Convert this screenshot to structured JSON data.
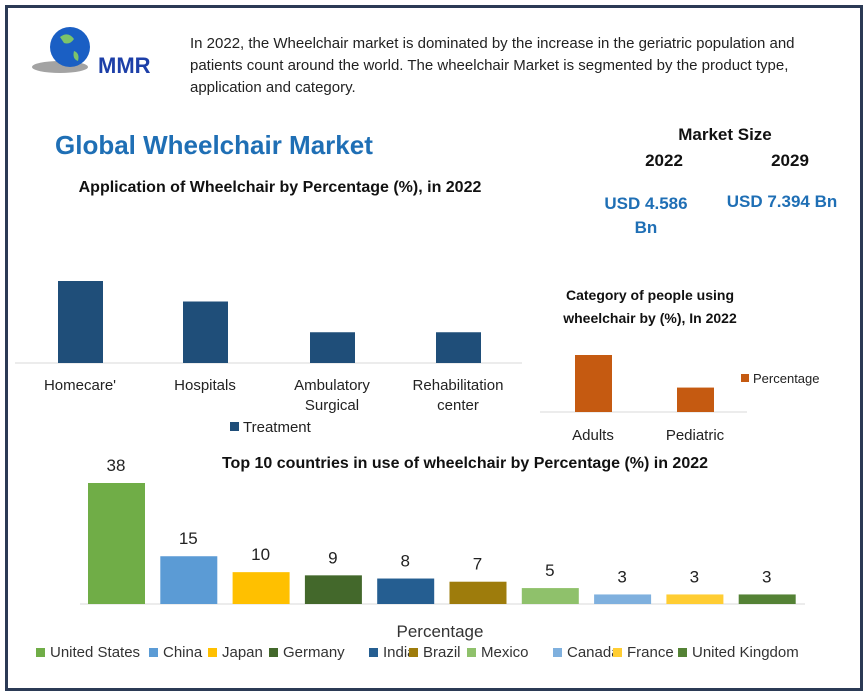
{
  "logo": {
    "text": "MMR"
  },
  "intro": "In 2022, the Wheelchair market is dominated by the increase in the geriatric population and patients count around the world. The wheelchair Market is segmented by the product type, application and category.",
  "title": "Global Wheelchair Market",
  "market": {
    "heading": "Market Size",
    "year1": "2022",
    "year2": "2029",
    "value1": "USD 4.586 Bn",
    "value2": "USD 7.394 Bn"
  },
  "chart_data": [
    {
      "type": "bar",
      "title": "Application of Wheelchair by Percentage (%), in 2022",
      "categories": [
        "Homecare'",
        "Hospitals",
        "Ambulatory Surgical",
        "Rehabilitation center"
      ],
      "series": [
        {
          "name": "Treatment",
          "values": [
            40,
            30,
            15,
            15
          ]
        }
      ],
      "color": "#1f4e79",
      "legend": "bottom",
      "grid": false
    },
    {
      "type": "bar",
      "title": "Category of people using wheelchair by (%), In 2022",
      "categories": [
        "Adults",
        "Pediatric"
      ],
      "series": [
        {
          "name": "Percentage",
          "values": [
            70,
            30
          ]
        }
      ],
      "color": "#c55a11",
      "legend": "right",
      "grid": false
    },
    {
      "type": "bar",
      "title": "Top 10 countries in use of wheelchair by Percentage (%) in 2022",
      "xlabel": "Percentage",
      "categories": [
        "United States",
        "China",
        "Japan",
        "Germany",
        "India",
        "Brazil",
        "Mexico",
        "Canada",
        "France",
        "United Kingdom"
      ],
      "values": [
        38,
        15,
        10,
        9,
        8,
        7,
        5,
        3,
        3,
        3
      ],
      "colors": [
        "#70ad47",
        "#5b9bd5",
        "#ffc000",
        "#43682b",
        "#255e91",
        "#9e7c0c",
        "#8fc16b",
        "#7fb0de",
        "#ffcd33",
        "#548235"
      ],
      "legend": "bottom",
      "grid": false
    }
  ]
}
